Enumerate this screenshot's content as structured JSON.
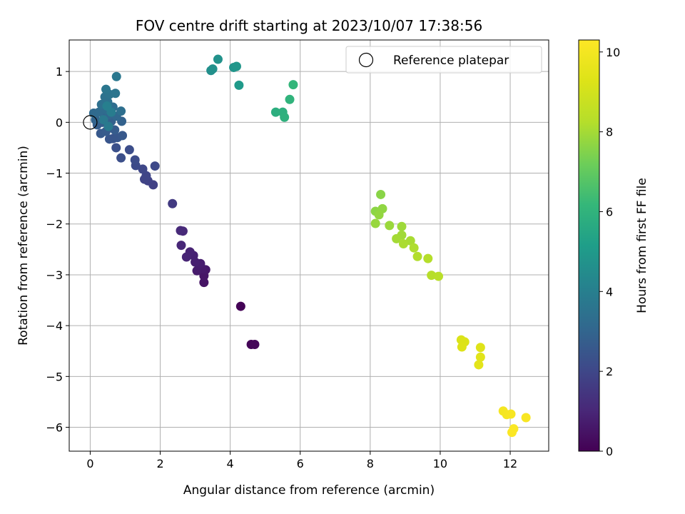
{
  "chart_data": {
    "type": "scatter",
    "title": "FOV centre drift starting at 2023/10/07 17:38:56",
    "xlabel": "Angular distance from reference (arcmin)",
    "ylabel": "Rotation from reference (arcmin)",
    "xlim": [
      -0.6,
      13.1
    ],
    "ylim": [
      -6.47,
      1.62
    ],
    "xticks": [
      0,
      2,
      4,
      6,
      8,
      10,
      12
    ],
    "yticks": [
      1,
      0,
      -1,
      -2,
      -3,
      -4,
      -5,
      -6
    ],
    "grid": true,
    "legend": {
      "location": "top-right",
      "entries": [
        "Reference platepar"
      ]
    },
    "reference_point": {
      "x": 0,
      "y": 0
    },
    "colorbar": {
      "label": "Hours from first FF file",
      "range": [
        0,
        10.3
      ],
      "ticks": [
        0,
        2,
        4,
        6,
        8,
        10
      ],
      "colormap": "viridis"
    },
    "points": [
      {
        "x": 4.3,
        "y": -3.62,
        "t": 0.05
      },
      {
        "x": 4.6,
        "y": -4.37,
        "t": 0.1
      },
      {
        "x": 4.7,
        "y": -4.37,
        "t": 0.15
      },
      {
        "x": 3.25,
        "y": -3.15,
        "t": 0.5
      },
      {
        "x": 3.25,
        "y": -3.02,
        "t": 0.55
      },
      {
        "x": 3.3,
        "y": -2.9,
        "t": 0.6
      },
      {
        "x": 3.2,
        "y": -2.88,
        "t": 0.65
      },
      {
        "x": 3.05,
        "y": -2.92,
        "t": 0.7
      },
      {
        "x": 3.15,
        "y": -2.78,
        "t": 0.75
      },
      {
        "x": 3.0,
        "y": -2.75,
        "t": 0.8
      },
      {
        "x": 2.95,
        "y": -2.62,
        "t": 0.85
      },
      {
        "x": 2.85,
        "y": -2.55,
        "t": 0.9
      },
      {
        "x": 2.75,
        "y": -2.65,
        "t": 0.95
      },
      {
        "x": 2.6,
        "y": -2.42,
        "t": 1.0
      },
      {
        "x": 2.65,
        "y": -2.14,
        "t": 1.05
      },
      {
        "x": 2.58,
        "y": -2.13,
        "t": 1.1
      },
      {
        "x": 2.35,
        "y": -1.6,
        "t": 1.6
      },
      {
        "x": 1.8,
        "y": -1.23,
        "t": 1.8
      },
      {
        "x": 1.65,
        "y": -1.15,
        "t": 1.85
      },
      {
        "x": 1.55,
        "y": -1.12,
        "t": 1.9
      },
      {
        "x": 1.6,
        "y": -1.05,
        "t": 1.95
      },
      {
        "x": 1.5,
        "y": -0.92,
        "t": 2.0
      },
      {
        "x": 1.85,
        "y": -0.86,
        "t": 2.05
      },
      {
        "x": 1.3,
        "y": -0.85,
        "t": 2.1
      },
      {
        "x": 1.28,
        "y": -0.74,
        "t": 2.15
      },
      {
        "x": 1.12,
        "y": -0.54,
        "t": 2.2
      },
      {
        "x": 0.88,
        "y": -0.7,
        "t": 2.25
      },
      {
        "x": 0.74,
        "y": -0.5,
        "t": 2.3
      },
      {
        "x": 0.65,
        "y": -0.32,
        "t": 2.4
      },
      {
        "x": 0.55,
        "y": -0.33,
        "t": 2.45
      },
      {
        "x": 0.78,
        "y": -0.3,
        "t": 2.5
      },
      {
        "x": 0.92,
        "y": -0.26,
        "t": 2.55
      },
      {
        "x": 0.3,
        "y": -0.22,
        "t": 2.6
      },
      {
        "x": 0.45,
        "y": -0.18,
        "t": 2.65
      },
      {
        "x": 0.7,
        "y": -0.15,
        "t": 2.7
      },
      {
        "x": 0.2,
        "y": -0.05,
        "t": 2.75
      },
      {
        "x": 0.35,
        "y": 0.0,
        "t": 2.8
      },
      {
        "x": 0.6,
        "y": 0.02,
        "t": 2.85
      },
      {
        "x": 0.9,
        "y": 0.02,
        "t": 2.9
      },
      {
        "x": 0.15,
        "y": 0.05,
        "t": 2.95
      },
      {
        "x": 0.4,
        "y": 0.1,
        "t": 3.0
      },
      {
        "x": 0.55,
        "y": 0.15,
        "t": 3.05
      },
      {
        "x": 0.75,
        "y": 0.12,
        "t": 3.1
      },
      {
        "x": 0.1,
        "y": 0.18,
        "t": 3.15
      },
      {
        "x": 0.25,
        "y": 0.2,
        "t": 3.2
      },
      {
        "x": 0.45,
        "y": 0.25,
        "t": 3.25
      },
      {
        "x": 0.65,
        "y": 0.3,
        "t": 3.3
      },
      {
        "x": 0.88,
        "y": 0.22,
        "t": 3.35
      },
      {
        "x": 0.32,
        "y": 0.35,
        "t": 3.4
      },
      {
        "x": 0.5,
        "y": 0.4,
        "t": 3.45
      },
      {
        "x": 0.42,
        "y": 0.5,
        "t": 3.5
      },
      {
        "x": 0.55,
        "y": 0.55,
        "t": 3.55
      },
      {
        "x": 0.72,
        "y": 0.57,
        "t": 3.6
      },
      {
        "x": 0.45,
        "y": 0.65,
        "t": 3.65
      },
      {
        "x": 0.75,
        "y": 0.9,
        "t": 3.7
      },
      {
        "x": 0.38,
        "y": 0.05,
        "t": 3.75
      },
      {
        "x": 0.52,
        "y": -0.08,
        "t": 3.8
      },
      {
        "x": 0.6,
        "y": 0.2,
        "t": 3.9
      },
      {
        "x": 0.48,
        "y": 0.32,
        "t": 4.0
      },
      {
        "x": 3.45,
        "y": 1.02,
        "t": 4.6
      },
      {
        "x": 3.5,
        "y": 1.05,
        "t": 4.65
      },
      {
        "x": 3.65,
        "y": 1.24,
        "t": 4.7
      },
      {
        "x": 4.1,
        "y": 1.08,
        "t": 4.8
      },
      {
        "x": 4.18,
        "y": 1.1,
        "t": 4.85
      },
      {
        "x": 4.25,
        "y": 0.73,
        "t": 5.0
      },
      {
        "x": 5.3,
        "y": 0.2,
        "t": 5.8
      },
      {
        "x": 5.5,
        "y": 0.2,
        "t": 5.85
      },
      {
        "x": 5.55,
        "y": 0.1,
        "t": 5.9
      },
      {
        "x": 5.7,
        "y": 0.45,
        "t": 6.0
      },
      {
        "x": 5.8,
        "y": 0.74,
        "t": 6.1
      },
      {
        "x": 8.3,
        "y": -1.42,
        "t": 7.6
      },
      {
        "x": 8.15,
        "y": -1.75,
        "t": 7.65
      },
      {
        "x": 8.35,
        "y": -1.7,
        "t": 7.7
      },
      {
        "x": 8.25,
        "y": -1.82,
        "t": 7.75
      },
      {
        "x": 8.15,
        "y": -1.99,
        "t": 7.8
      },
      {
        "x": 8.55,
        "y": -2.03,
        "t": 7.85
      },
      {
        "x": 8.9,
        "y": -2.05,
        "t": 7.9
      },
      {
        "x": 8.9,
        "y": -2.22,
        "t": 7.95
      },
      {
        "x": 8.75,
        "y": -2.29,
        "t": 8.0
      },
      {
        "x": 9.15,
        "y": -2.33,
        "t": 8.05
      },
      {
        "x": 8.95,
        "y": -2.39,
        "t": 8.1
      },
      {
        "x": 9.25,
        "y": -2.47,
        "t": 8.15
      },
      {
        "x": 9.35,
        "y": -2.64,
        "t": 8.2
      },
      {
        "x": 9.65,
        "y": -2.68,
        "t": 8.25
      },
      {
        "x": 9.75,
        "y": -3.01,
        "t": 8.3
      },
      {
        "x": 9.95,
        "y": -3.03,
        "t": 8.35
      },
      {
        "x": 10.6,
        "y": -4.28,
        "t": 9.2
      },
      {
        "x": 10.7,
        "y": -4.32,
        "t": 9.25
      },
      {
        "x": 10.62,
        "y": -4.42,
        "t": 9.3
      },
      {
        "x": 11.15,
        "y": -4.43,
        "t": 9.35
      },
      {
        "x": 11.15,
        "y": -4.62,
        "t": 9.4
      },
      {
        "x": 11.1,
        "y": -4.77,
        "t": 9.45
      },
      {
        "x": 11.8,
        "y": -5.68,
        "t": 10.0
      },
      {
        "x": 11.9,
        "y": -5.75,
        "t": 10.05
      },
      {
        "x": 12.02,
        "y": -5.74,
        "t": 10.1
      },
      {
        "x": 12.45,
        "y": -5.81,
        "t": 10.15
      },
      {
        "x": 12.1,
        "y": -6.03,
        "t": 10.2
      },
      {
        "x": 12.05,
        "y": -6.1,
        "t": 10.25
      }
    ]
  }
}
